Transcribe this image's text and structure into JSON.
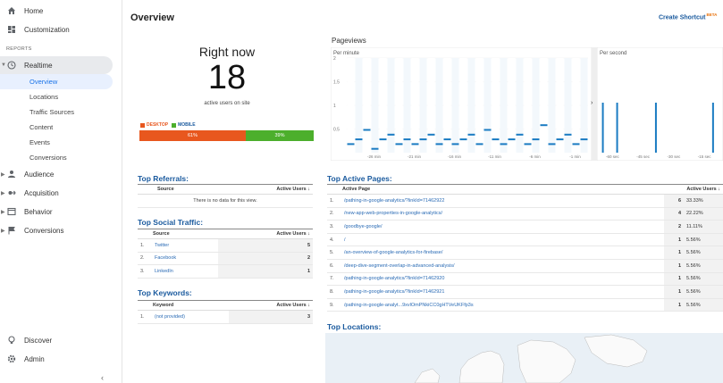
{
  "sidebar": {
    "home": "Home",
    "customization": "Customization",
    "section_reports": "REPORTS",
    "realtime": "Realtime",
    "realtime_items": [
      "Overview",
      "Locations",
      "Traffic Sources",
      "Content",
      "Events",
      "Conversions"
    ],
    "audience": "Audience",
    "acquisition": "Acquisition",
    "behavior": "Behavior",
    "conversions": "Conversions",
    "discover": "Discover",
    "admin": "Admin",
    "collapse_icon": "chevron-left-icon"
  },
  "header": {
    "title": "Overview",
    "create_shortcut": "Create Shortcut",
    "beta": "BETA"
  },
  "right_now": {
    "title": "Right now",
    "count": "18",
    "subtitle": "active users on site",
    "legend_desktop": "DESKTOP",
    "legend_mobile": "MOBILE",
    "desktop_pct_label": "61%",
    "mobile_pct_label": "39%",
    "desktop_fraction": 0.61,
    "mobile_fraction": 0.39,
    "desktop_color": "#e8571e",
    "mobile_color": "#4caf2c"
  },
  "pageviews": {
    "title": "Pageviews",
    "per_minute": "Per minute",
    "per_second": "Per second"
  },
  "chart_data": [
    {
      "type": "bar",
      "title": "Per minute",
      "ylim": [
        0,
        2
      ],
      "y_ticks": [
        "2",
        "1.5",
        "1",
        "0.5"
      ],
      "x_ticks": [
        "-26 min",
        "-21 min",
        "-16 min",
        "-11 min",
        "-6 min",
        "-1 min"
      ],
      "values": [
        0.2,
        0.3,
        0.5,
        0.1,
        0.3,
        0.4,
        0.2,
        0.3,
        0.2,
        0.3,
        0.4,
        0.2,
        0.3,
        0.2,
        0.3,
        0.4,
        0.2,
        0.5,
        0.3,
        0.2,
        0.3,
        0.4,
        0.2,
        0.3,
        0.6,
        0.2,
        0.3,
        0.4,
        0.2,
        0.3
      ],
      "bar_color": "#1a7bc2",
      "series_color": "#bcd9ee"
    },
    {
      "type": "bar",
      "title": "Per second",
      "x_ticks": [
        "-60 sec",
        "-45 sec",
        "-30 sec",
        "-15 sec"
      ],
      "xlim": [
        -60,
        0
      ],
      "ylim": [
        0,
        1
      ],
      "bars": [
        {
          "x": -58,
          "value": 1
        },
        {
          "x": -51,
          "value": 1
        },
        {
          "x": -32,
          "value": 1
        },
        {
          "x": -4,
          "value": 1
        }
      ],
      "bar_color": "#1a7bc2"
    }
  ],
  "top_referrals": {
    "title": "Top Referrals:",
    "col_source": "Source",
    "col_users": "Active Users",
    "empty": "There is no data for this view."
  },
  "top_social": {
    "title": "Top Social Traffic:",
    "col_source": "Source",
    "col_users": "Active Users",
    "rows": [
      {
        "n": "1.",
        "name": "Twitter",
        "value": "5"
      },
      {
        "n": "2.",
        "name": "Facebook",
        "value": "2"
      },
      {
        "n": "3.",
        "name": "LinkedIn",
        "value": "1"
      }
    ]
  },
  "top_keywords": {
    "title": "Top Keywords:",
    "col_keyword": "Keyword",
    "col_users": "Active Users",
    "rows": [
      {
        "n": "1.",
        "name": "(not provided)",
        "value": "3"
      }
    ]
  },
  "top_pages": {
    "title": "Top Active Pages:",
    "col_page": "Active Page",
    "col_users": "Active Users",
    "rows": [
      {
        "n": "1.",
        "page": "/pathing-in-google-analytics/?linkId=71462922",
        "users": "6",
        "pct": "33.33%"
      },
      {
        "n": "2.",
        "page": "/new-app-web-properties-in-google-analytics/",
        "users": "4",
        "pct": "22.22%"
      },
      {
        "n": "3.",
        "page": "/goodbye-google/",
        "users": "2",
        "pct": "11.11%"
      },
      {
        "n": "4.",
        "page": "/",
        "users": "1",
        "pct": "5.56%"
      },
      {
        "n": "5.",
        "page": "/an-overview-of-google-analytics-for-firebase/",
        "users": "1",
        "pct": "5.56%"
      },
      {
        "n": "6.",
        "page": "/deep-dive-segment-overlap-in-advanced-analysis/",
        "users": "1",
        "pct": "5.56%"
      },
      {
        "n": "7.",
        "page": "/pathing-in-google-analytics/?linkId=71462920",
        "users": "1",
        "pct": "5.56%"
      },
      {
        "n": "8.",
        "page": "/pathing-in-google-analytics/?linkId=71462921",
        "users": "1",
        "pct": "5.56%"
      },
      {
        "n": "9.",
        "page": "/pathing-in-google-analyt...9xvlOmPNkiCC0gHTVeUKFfp3s",
        "users": "1",
        "pct": "5.56%"
      }
    ]
  },
  "top_locations": {
    "title": "Top Locations:"
  }
}
